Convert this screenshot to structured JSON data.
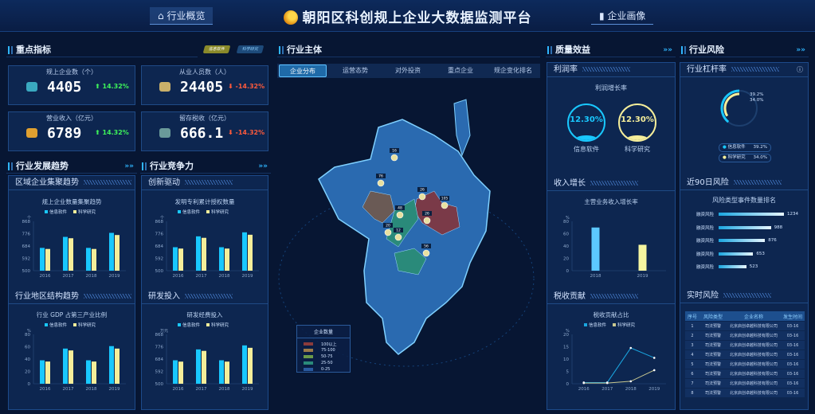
{
  "header": {
    "title": "朝阳区科创规上企业大数据监测平台",
    "nav_left": "行业概览",
    "nav_right": "企业画像",
    "icons": {
      "left": "home-icon",
      "right": "bar-chart-icon"
    }
  },
  "left": {
    "key_title": "重点指标",
    "toggles": [
      "信息软件",
      "科学研究"
    ],
    "kpis": [
      {
        "label": "规上企业数（个）",
        "value": "4405",
        "change": "14.32%",
        "dir": "up",
        "icon": "gear-icon"
      },
      {
        "label": "从业人员数（人）",
        "value": "24405",
        "change": "-14.32%",
        "dir": "down",
        "icon": "people-icon"
      },
      {
        "label": "营业收入（亿元）",
        "value": "6789",
        "change": "14.32%",
        "dir": "up",
        "icon": "trophy-icon"
      },
      {
        "label": "留存税收（亿元）",
        "value": "666.1",
        "change": "-14.32%",
        "dir": "down",
        "icon": "coins-icon"
      }
    ],
    "trend_title": "行业发展趋势",
    "compete_title": "行业竞争力",
    "sub1": "区域企业集聚趋势",
    "sub2": "行业地区结构趋势",
    "sub3": "创新驱动",
    "sub4": "研发投入"
  },
  "center": {
    "title": "行业主体",
    "tabs": [
      "企业分布",
      "运营态势",
      "对外投资",
      "重点企业",
      "规企变化排名"
    ],
    "active_tab": 0,
    "map_labels": [
      "16",
      "76",
      "26",
      "105",
      "48",
      "26",
      "20",
      "12",
      "56"
    ],
    "legend": {
      "title": "企业数量",
      "items": [
        {
          "label": "100以上",
          "color": "#8a3b3b"
        },
        {
          "label": "75-100",
          "color": "#9a7a4a"
        },
        {
          "label": "50-75",
          "color": "#6a9a4a"
        },
        {
          "label": "25-50",
          "color": "#2a8a7a"
        },
        {
          "label": "0-25",
          "color": "#2a5aa0"
        }
      ]
    }
  },
  "quality": {
    "title": "质量效益",
    "sub1": "利润率",
    "gauge_title": "利润增长率",
    "gauges": [
      {
        "value": "12.30%",
        "label": "信息软件",
        "color": "#19c8ff"
      },
      {
        "value": "12.30%",
        "label": "科学研究",
        "color": "#f5ee9a"
      }
    ],
    "sub2": "收入增长",
    "sub3": "税收贡献"
  },
  "risk": {
    "title": "行业风险",
    "sub1": "行业杠杆率",
    "ring": [
      {
        "label": "信息软件",
        "value": "39.2%",
        "pct": 39.2,
        "color": "#19c8ff"
      },
      {
        "label": "科学研究",
        "value": "34.0%",
        "pct": 34.0,
        "color": "#f5ee9a"
      }
    ],
    "sub2": "近90日风险",
    "rank_title": "风险类型事件数量排名",
    "rank": [
      {
        "label": "融资风险",
        "value": 1234
      },
      {
        "label": "融资风险",
        "value": 988
      },
      {
        "label": "融资风险",
        "value": 876
      },
      {
        "label": "融资风险",
        "value": 653
      },
      {
        "label": "融资风险",
        "value": 523
      }
    ],
    "sub3": "实时风险",
    "table_head": [
      "序号",
      "风险类型",
      "企业名称",
      "发生时间"
    ],
    "table_rows": [
      [
        "1",
        "司法预警",
        "北京启创卓越科技有限公司",
        "03-16"
      ],
      [
        "2",
        "司法预警",
        "北京启创卓越科技有限公司",
        "03-16"
      ],
      [
        "3",
        "司法预警",
        "北京启创卓越科技有限公司",
        "03-16"
      ],
      [
        "4",
        "司法预警",
        "北京启创卓越科技有限公司",
        "03-16"
      ],
      [
        "5",
        "司法预警",
        "北京启创卓越科技有限公司",
        "03-16"
      ],
      [
        "6",
        "司法预警",
        "北京启创卓越科技有限公司",
        "03-16"
      ],
      [
        "7",
        "司法预警",
        "北京启创卓越科技有限公司",
        "03-16"
      ],
      [
        "8",
        "司法预警",
        "北京启创卓越科技有限公司",
        "03-16"
      ]
    ]
  },
  "chart_data": [
    {
      "id": "c1",
      "type": "bar",
      "title": "规上企业数量集聚趋势",
      "ylabel": "个",
      "categories": [
        "2016",
        "2017",
        "2018",
        "2019"
      ],
      "ylim": [
        500,
        868
      ],
      "yticks": [
        500,
        592,
        684,
        776,
        868
      ],
      "series": [
        {
          "name": "信息软件",
          "color": "#19c8ff",
          "values": [
            670,
            752,
            670,
            782
          ]
        },
        {
          "name": "科学研究",
          "color": "#f5ee9a",
          "values": [
            662,
            742,
            662,
            766
          ]
        }
      ]
    },
    {
      "id": "c2",
      "type": "bar",
      "title": "行业 GDP 占第三产业比例",
      "ylabel": "%",
      "categories": [
        "2016",
        "2017",
        "2018",
        "2019"
      ],
      "ylim": [
        0,
        80
      ],
      "yticks": [
        0,
        20,
        40,
        60,
        80
      ],
      "series": [
        {
          "name": "信息软件",
          "color": "#19c8ff",
          "values": [
            38,
            57,
            38,
            61
          ]
        },
        {
          "name": "科学研究",
          "color": "#f5ee9a",
          "values": [
            36,
            54,
            36,
            57
          ]
        }
      ]
    },
    {
      "id": "c3",
      "type": "bar",
      "title": "发明专利累计授权数量",
      "ylabel": "个",
      "categories": [
        "2016",
        "2017",
        "2018",
        "2019"
      ],
      "ylim": [
        500,
        868
      ],
      "yticks": [
        500,
        592,
        684,
        776,
        868
      ],
      "series": [
        {
          "name": "信息软件",
          "color": "#19c8ff",
          "values": [
            675,
            756,
            675,
            786
          ]
        },
        {
          "name": "科学研究",
          "color": "#f5ee9a",
          "values": [
            665,
            745,
            665,
            768
          ]
        }
      ]
    },
    {
      "id": "c4",
      "type": "bar",
      "title": "研发经费投入",
      "ylabel": "万元",
      "categories": [
        "2016",
        "2017",
        "2018",
        "2019"
      ],
      "ylim": [
        500,
        868
      ],
      "yticks": [
        500,
        592,
        684,
        776,
        868
      ],
      "series": [
        {
          "name": "信息软件",
          "color": "#19c8ff",
          "values": [
            675,
            756,
            675,
            786
          ]
        },
        {
          "name": "科学研究",
          "color": "#f5ee9a",
          "values": [
            665,
            745,
            665,
            768
          ]
        }
      ]
    },
    {
      "id": "c5",
      "type": "bar",
      "title": "主营业务收入增长率",
      "ylabel": "%",
      "categories": [
        "2018",
        "2019"
      ],
      "ylim": [
        0,
        80
      ],
      "yticks": [
        0,
        20,
        40,
        60,
        80
      ],
      "series": [
        {
          "values": [
            70,
            null
          ],
          "color": "#5cc8ff"
        },
        {
          "values": [
            null,
            42
          ],
          "color": "#f5f5a0"
        }
      ]
    },
    {
      "id": "c6",
      "type": "line",
      "title": "税收贡献占比",
      "ylabel": "%",
      "categories": [
        "2016",
        "2017",
        "2018",
        "2019"
      ],
      "ylim": [
        0,
        20
      ],
      "yticks": [
        0,
        5,
        10,
        15,
        20
      ],
      "series": [
        {
          "name": "信息软件",
          "color": "#1aa6e0",
          "values": [
            0.5,
            0.5,
            14.5,
            10.5
          ]
        },
        {
          "name": "科学研究",
          "color": "#c8c890",
          "values": [
            0.3,
            0.3,
            1,
            5.5
          ]
        }
      ]
    }
  ]
}
